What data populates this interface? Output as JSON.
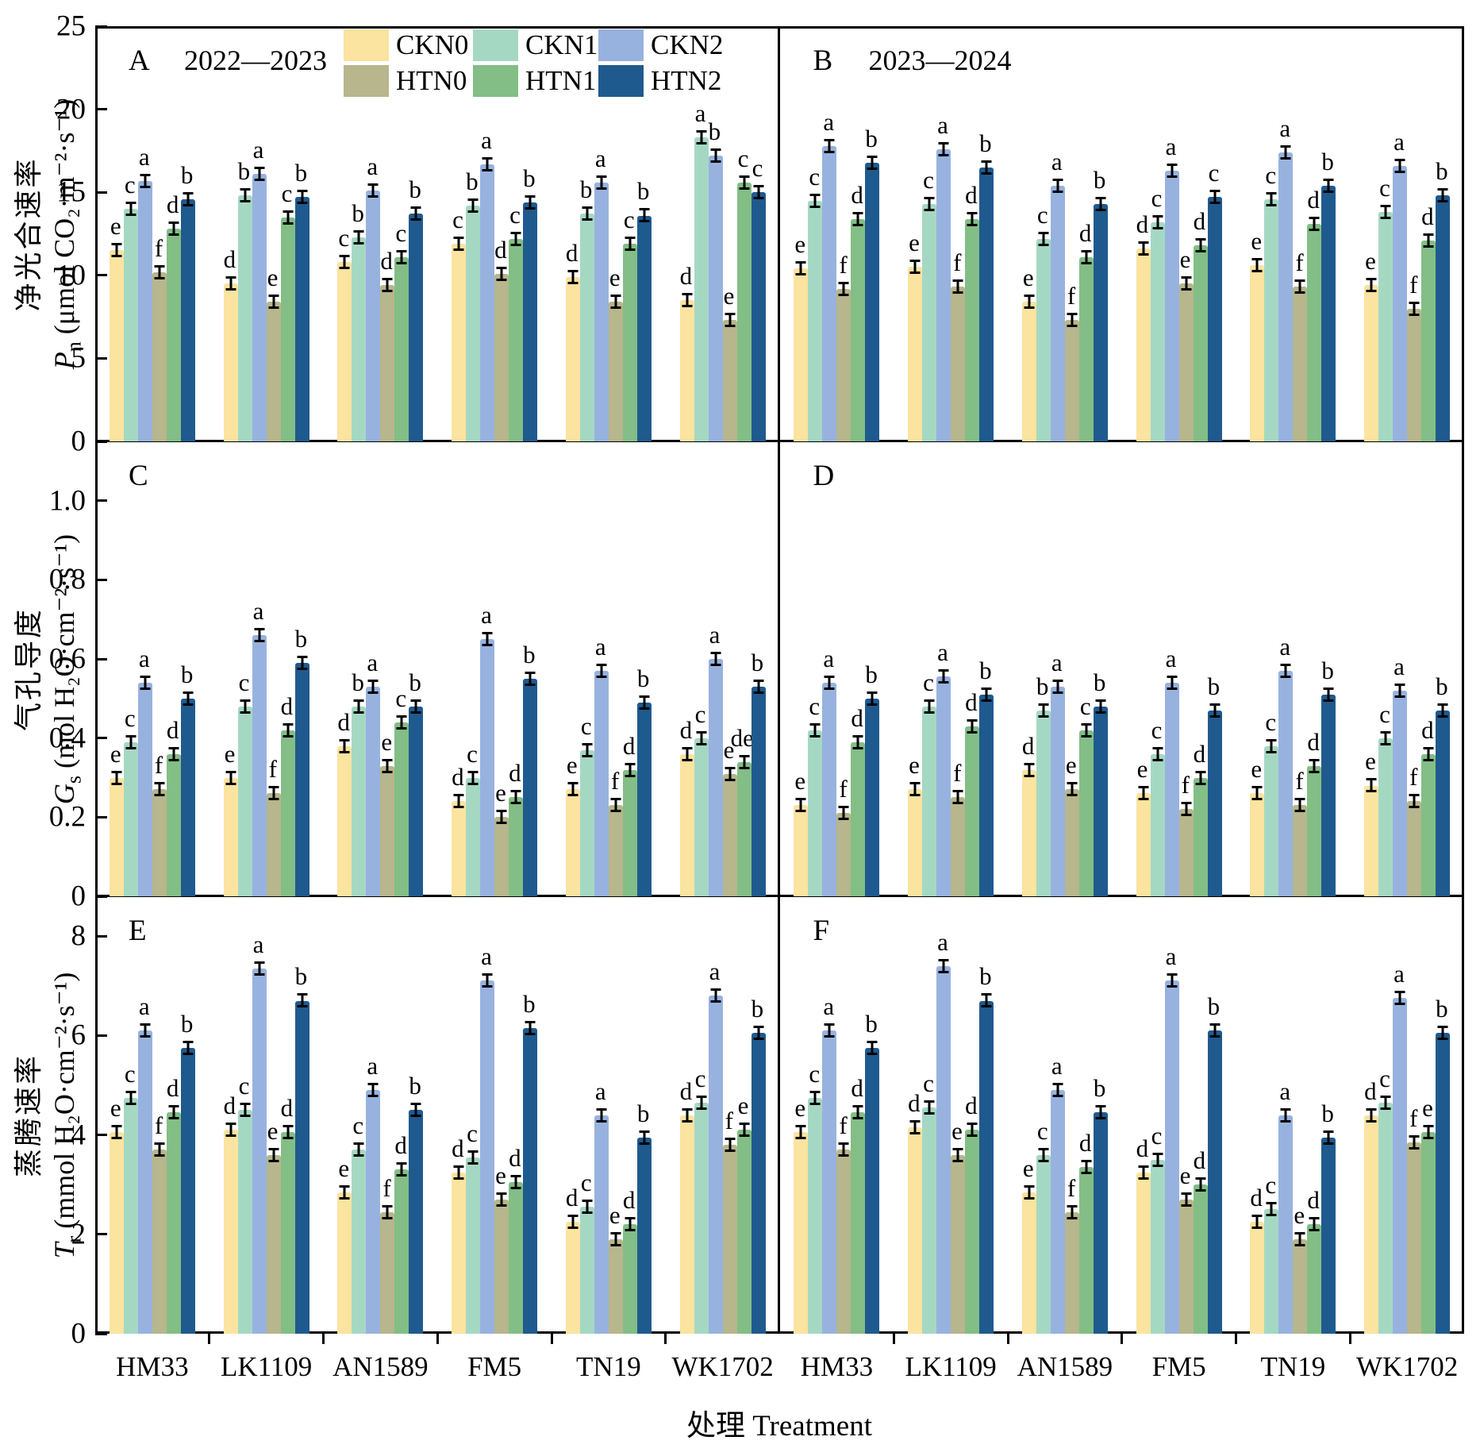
{
  "figure": {
    "x_axis_title": "处理 Treatment",
    "categories": [
      "HM33",
      "LK1109",
      "AN1589",
      "FM5",
      "TN19",
      "WK1702"
    ],
    "treatments": [
      "CKN0",
      "CKN1",
      "CKN2",
      "HTN0",
      "HTN1",
      "HTN2"
    ],
    "colors": {
      "CKN0": "#FBE3A0",
      "CKN1": "#A5D8C3",
      "CKN2": "#98B2DF",
      "HTN0": "#B7B68C",
      "HTN1": "#82BE86",
      "HTN2": "#1F5A8E"
    },
    "frame_color": "#000000",
    "error_bar_color": "#000000"
  },
  "chart_data": [
    {
      "id": "A",
      "type": "bar",
      "panel_label": "A",
      "subtitle": "2022—2023",
      "row": 0,
      "col": 0,
      "show_yticks": true,
      "show_legend": true,
      "ylabel_cn": "净光合速率",
      "ylabel_symbol": "P",
      "ylabel_subscript": "n",
      "ylabel_unit": "(μmol CO₂·m⁻²·s⁻¹)",
      "ylim": [
        0,
        25
      ],
      "ymax_display": 25,
      "ytick_values": [
        0,
        5,
        10,
        15,
        20,
        25
      ],
      "ytick_labels": [
        "0",
        "5",
        "10",
        "15",
        "20",
        "25"
      ],
      "categories": [
        "HM33",
        "LK1109",
        "AN1589",
        "FM5",
        "TN19",
        "WK1702"
      ],
      "series": [
        {
          "name": "CKN0",
          "values": [
            11.5,
            9.5,
            10.8,
            11.9,
            9.9,
            8.5
          ],
          "letters": [
            "e",
            "d",
            "c",
            "c",
            "d",
            "d"
          ]
        },
        {
          "name": "CKN1",
          "values": [
            14.0,
            14.8,
            12.3,
            14.2,
            13.7,
            18.3
          ],
          "letters": [
            "c",
            "b",
            "b",
            "b",
            "b",
            "a"
          ]
        },
        {
          "name": "CKN2",
          "values": [
            15.7,
            16.1,
            15.1,
            16.7,
            15.6,
            17.2
          ],
          "letters": [
            "a",
            "a",
            "a",
            "a",
            "a",
            "b"
          ]
        },
        {
          "name": "HTN0",
          "values": [
            10.2,
            8.4,
            9.4,
            10.1,
            8.4,
            7.3
          ],
          "letters": [
            "f",
            "e",
            "d",
            "d",
            "e",
            "e"
          ]
        },
        {
          "name": "HTN1",
          "values": [
            12.8,
            13.5,
            11.1,
            12.2,
            11.9,
            15.6
          ],
          "letters": [
            "d",
            "c",
            "c",
            "c",
            "c",
            "c"
          ]
        },
        {
          "name": "HTN2",
          "values": [
            14.6,
            14.7,
            13.7,
            14.4,
            13.6,
            15.0
          ],
          "letters": [
            "b",
            "b",
            "b",
            "b",
            "b",
            "c"
          ]
        }
      ]
    },
    {
      "id": "B",
      "type": "bar",
      "panel_label": "B",
      "subtitle": "2023—2024",
      "row": 0,
      "col": 1,
      "show_yticks": false,
      "show_legend": false,
      "ylim": [
        0,
        25
      ],
      "ymax_display": 25,
      "categories": [
        "HM33",
        "LK1109",
        "AN1589",
        "FM5",
        "TN19",
        "WK1702"
      ],
      "series": [
        {
          "name": "CKN0",
          "values": [
            10.4,
            10.5,
            8.4,
            11.6,
            10.6,
            9.4
          ],
          "letters": [
            "e",
            "e",
            "e",
            "d",
            "e",
            "e"
          ]
        },
        {
          "name": "CKN1",
          "values": [
            14.5,
            14.3,
            12.2,
            13.2,
            14.6,
            13.8
          ],
          "letters": [
            "c",
            "c",
            "c",
            "c",
            "c",
            "c"
          ]
        },
        {
          "name": "CKN2",
          "values": [
            17.8,
            17.6,
            15.4,
            16.3,
            17.4,
            16.6
          ],
          "letters": [
            "a",
            "a",
            "a",
            "a",
            "a",
            "a"
          ]
        },
        {
          "name": "HTN0",
          "values": [
            9.2,
            9.3,
            7.3,
            9.5,
            9.3,
            8.0
          ],
          "letters": [
            "f",
            "f",
            "f",
            "e",
            "f",
            "f"
          ]
        },
        {
          "name": "HTN1",
          "values": [
            13.4,
            13.4,
            11.1,
            11.8,
            13.1,
            12.1
          ],
          "letters": [
            "d",
            "d",
            "d",
            "d",
            "d",
            "d"
          ]
        },
        {
          "name": "HTN2",
          "values": [
            16.8,
            16.5,
            14.3,
            14.7,
            15.4,
            14.8
          ],
          "letters": [
            "b",
            "b",
            "b",
            "c",
            "b",
            "b"
          ]
        }
      ]
    },
    {
      "id": "C",
      "type": "bar",
      "panel_label": "C",
      "subtitle": "",
      "row": 1,
      "col": 0,
      "show_yticks": true,
      "show_legend": false,
      "ylabel_cn": "气孔导度",
      "ylabel_symbol": "G",
      "ylabel_subscript": "s",
      "ylabel_unit": "(mol H₂O·cm⁻²·s⁻¹)",
      "ylim": [
        0,
        1.15
      ],
      "ymax_display": 1.15,
      "ytick_values": [
        0,
        0.2,
        0.4,
        0.6,
        0.8,
        1.0
      ],
      "ytick_labels": [
        "0",
        "0.2",
        "0.4",
        "0.6",
        "0.8",
        "1.0"
      ],
      "categories": [
        "HM33",
        "LK1109",
        "AN1589",
        "FM5",
        "TN19",
        "WK1702"
      ],
      "series": [
        {
          "name": "CKN0",
          "values": [
            0.3,
            0.3,
            0.38,
            0.24,
            0.27,
            0.36
          ],
          "letters": [
            "e",
            "e",
            "d",
            "d",
            "e",
            "d"
          ]
        },
        {
          "name": "CKN1",
          "values": [
            0.39,
            0.48,
            0.48,
            0.3,
            0.37,
            0.4
          ],
          "letters": [
            "c",
            "c",
            "b",
            "c",
            "c",
            "c"
          ]
        },
        {
          "name": "CKN2",
          "values": [
            0.54,
            0.66,
            0.53,
            0.65,
            0.57,
            0.6
          ],
          "letters": [
            "a",
            "a",
            "a",
            "a",
            "a",
            "a"
          ]
        },
        {
          "name": "HTN0",
          "values": [
            0.27,
            0.26,
            0.33,
            0.2,
            0.23,
            0.31
          ],
          "letters": [
            "f",
            "f",
            "e",
            "e",
            "f",
            "e"
          ]
        },
        {
          "name": "HTN1",
          "values": [
            0.36,
            0.42,
            0.44,
            0.25,
            0.32,
            0.34
          ],
          "letters": [
            "d",
            "d",
            "c",
            "d",
            "d",
            "de"
          ]
        },
        {
          "name": "HTN2",
          "values": [
            0.5,
            0.59,
            0.48,
            0.55,
            0.49,
            0.53
          ],
          "letters": [
            "b",
            "b",
            "b",
            "b",
            "b",
            "b"
          ]
        }
      ]
    },
    {
      "id": "D",
      "type": "bar",
      "panel_label": "D",
      "subtitle": "",
      "row": 1,
      "col": 1,
      "show_yticks": false,
      "show_legend": false,
      "ylim": [
        0,
        1.15
      ],
      "ymax_display": 1.15,
      "categories": [
        "HM33",
        "LK1109",
        "AN1589",
        "FM5",
        "TN19",
        "WK1702"
      ],
      "series": [
        {
          "name": "CKN0",
          "values": [
            0.23,
            0.27,
            0.32,
            0.26,
            0.26,
            0.28
          ],
          "letters": [
            "e",
            "e",
            "d",
            "e",
            "e",
            "e"
          ]
        },
        {
          "name": "CKN1",
          "values": [
            0.42,
            0.48,
            0.47,
            0.36,
            0.38,
            0.4
          ],
          "letters": [
            "c",
            "c",
            "b",
            "c",
            "c",
            "c"
          ]
        },
        {
          "name": "CKN2",
          "values": [
            0.54,
            0.555,
            0.53,
            0.54,
            0.57,
            0.52
          ],
          "letters": [
            "a",
            "a",
            "a",
            "a",
            "a",
            "a"
          ]
        },
        {
          "name": "HTN0",
          "values": [
            0.21,
            0.25,
            0.27,
            0.22,
            0.23,
            0.24
          ],
          "letters": [
            "f",
            "f",
            "e",
            "f",
            "f",
            "f"
          ]
        },
        {
          "name": "HTN1",
          "values": [
            0.39,
            0.43,
            0.42,
            0.3,
            0.33,
            0.36
          ],
          "letters": [
            "d",
            "d",
            "c",
            "d",
            "d",
            "d"
          ]
        },
        {
          "name": "HTN2",
          "values": [
            0.5,
            0.51,
            0.48,
            0.47,
            0.51,
            0.47
          ],
          "letters": [
            "b",
            "b",
            "b",
            "b",
            "b",
            "b"
          ]
        }
      ]
    },
    {
      "id": "E",
      "type": "bar",
      "panel_label": "E",
      "subtitle": "",
      "row": 2,
      "col": 0,
      "show_yticks": true,
      "show_legend": false,
      "ylabel_cn": "蒸腾速率",
      "ylabel_symbol": "T",
      "ylabel_subscript": "r",
      "ylabel_unit": "(mmol H₂O·cm⁻²·s⁻¹)",
      "ylim": [
        0,
        8.8
      ],
      "ymax_display": 8.8,
      "ytick_values": [
        0,
        2,
        4,
        6,
        8
      ],
      "ytick_labels": [
        "0",
        "2",
        "4",
        "6",
        "8"
      ],
      "categories": [
        "HM33",
        "LK1109",
        "AN1589",
        "FM5",
        "TN19",
        "WK1702"
      ],
      "series": [
        {
          "name": "CKN0",
          "values": [
            4.05,
            4.1,
            2.85,
            3.25,
            2.25,
            4.4
          ],
          "letters": [
            "e",
            "d",
            "e",
            "d",
            "d",
            "d"
          ]
        },
        {
          "name": "CKN1",
          "values": [
            4.75,
            4.5,
            3.7,
            3.55,
            2.55,
            4.65
          ],
          "letters": [
            "c",
            "c",
            "c",
            "c",
            "c",
            "c"
          ]
        },
        {
          "name": "CKN2",
          "values": [
            6.1,
            7.35,
            4.9,
            7.1,
            4.4,
            6.8
          ],
          "letters": [
            "a",
            "a",
            "a",
            "a",
            "a",
            "a"
          ]
        },
        {
          "name": "HTN0",
          "values": [
            3.7,
            3.6,
            2.45,
            2.7,
            1.9,
            3.8
          ],
          "letters": [
            "f",
            "e",
            "f",
            "e",
            "e",
            "f"
          ]
        },
        {
          "name": "HTN1",
          "values": [
            4.45,
            4.05,
            3.3,
            3.05,
            2.2,
            4.1
          ],
          "letters": [
            "d",
            "d",
            "d",
            "d",
            "d",
            "e"
          ]
        },
        {
          "name": "HTN2",
          "values": [
            5.75,
            6.7,
            4.5,
            6.15,
            3.95,
            6.05
          ],
          "letters": [
            "b",
            "b",
            "b",
            "b",
            "b",
            "b"
          ]
        }
      ]
    },
    {
      "id": "F",
      "type": "bar",
      "panel_label": "F",
      "subtitle": "",
      "row": 2,
      "col": 1,
      "show_yticks": false,
      "show_legend": false,
      "ylim": [
        0,
        8.8
      ],
      "ymax_display": 8.8,
      "categories": [
        "HM33",
        "LK1109",
        "AN1589",
        "FM5",
        "TN19",
        "WK1702"
      ],
      "series": [
        {
          "name": "CKN0",
          "values": [
            4.05,
            4.15,
            2.85,
            3.25,
            2.25,
            4.4
          ],
          "letters": [
            "e",
            "d",
            "e",
            "d",
            "d",
            "d"
          ]
        },
        {
          "name": "CKN1",
          "values": [
            4.75,
            4.55,
            3.6,
            3.5,
            2.5,
            4.65
          ],
          "letters": [
            "c",
            "c",
            "c",
            "c",
            "c",
            "c"
          ]
        },
        {
          "name": "CKN2",
          "values": [
            6.1,
            7.4,
            4.9,
            7.1,
            4.4,
            6.75
          ],
          "letters": [
            "a",
            "a",
            "a",
            "a",
            "a",
            "a"
          ]
        },
        {
          "name": "HTN0",
          "values": [
            3.7,
            3.6,
            2.45,
            2.7,
            1.9,
            3.85
          ],
          "letters": [
            "f",
            "e",
            "f",
            "e",
            "e",
            "f"
          ]
        },
        {
          "name": "HTN1",
          "values": [
            4.45,
            4.1,
            3.35,
            3.0,
            2.2,
            4.05
          ],
          "letters": [
            "d",
            "d",
            "d",
            "d",
            "d",
            "e"
          ]
        },
        {
          "name": "HTN2",
          "values": [
            5.75,
            6.7,
            4.45,
            6.1,
            3.95,
            6.05
          ],
          "letters": [
            "b",
            "b",
            "b",
            "b",
            "b",
            "b"
          ]
        }
      ]
    }
  ]
}
